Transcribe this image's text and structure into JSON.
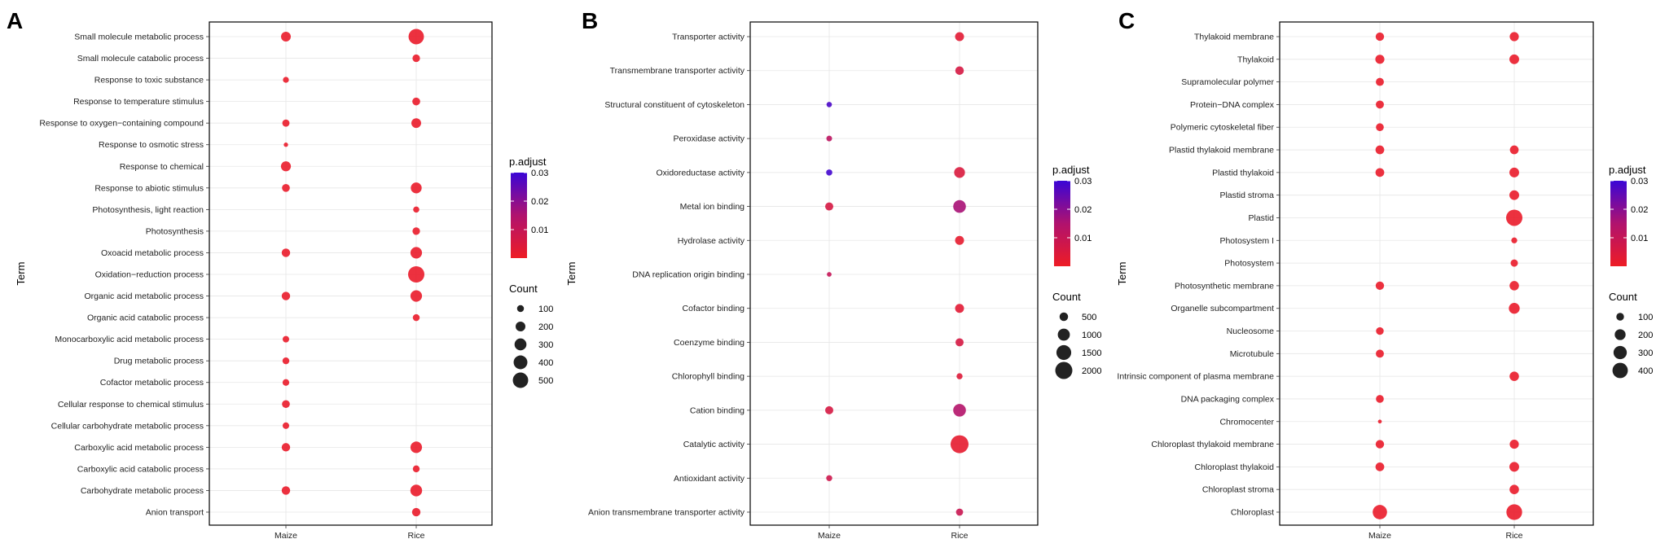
{
  "chart_data": [
    {
      "type": "scatter",
      "panel": "A",
      "xlabel": "",
      "ylabel": "Term",
      "categories": [
        "Maize",
        "Rice"
      ],
      "terms": [
        "Small molecule metabolic process",
        "Small molecule catabolic process",
        "Response to toxic substance",
        "Response to temperature stimulus",
        "Response to oxygen−containing compound",
        "Response to osmotic stress",
        "Response to chemical",
        "Response to abiotic stimulus",
        "Photosynthesis, light reaction",
        "Photosynthesis",
        "Oxoacid metabolic process",
        "Oxidation−reduction process",
        "Organic acid metabolic process",
        "Organic acid catabolic process",
        "Monocarboxylic acid metabolic process",
        "Drug metabolic process",
        "Cofactor metabolic process",
        "Cellular response to chemical stimulus",
        "Cellular carbohydrate metabolic process",
        "Carboxylic acid metabolic process",
        "Carboxylic acid catabolic process",
        "Carbohydrate metabolic process",
        "Anion transport"
      ],
      "points": [
        {
          "term": "Small molecule metabolic process",
          "group": "Maize",
          "count": 200,
          "p_adjust": 0.001
        },
        {
          "term": "Small molecule metabolic process",
          "group": "Rice",
          "count": 500,
          "p_adjust": 0.001
        },
        {
          "term": "Small molecule catabolic process",
          "group": "Rice",
          "count": 120,
          "p_adjust": 0.001
        },
        {
          "term": "Response to toxic substance",
          "group": "Maize",
          "count": 75,
          "p_adjust": 0.001
        },
        {
          "term": "Response to temperature stimulus",
          "group": "Rice",
          "count": 130,
          "p_adjust": 0.001
        },
        {
          "term": "Response to oxygen−containing compound",
          "group": "Maize",
          "count": 110,
          "p_adjust": 0.001
        },
        {
          "term": "Response to oxygen−containing compound",
          "group": "Rice",
          "count": 200,
          "p_adjust": 0.001
        },
        {
          "term": "Response to osmotic stress",
          "group": "Maize",
          "count": 40,
          "p_adjust": 0.001
        },
        {
          "term": "Response to chemical",
          "group": "Maize",
          "count": 210,
          "p_adjust": 0.001
        },
        {
          "term": "Response to abiotic stimulus",
          "group": "Maize",
          "count": 130,
          "p_adjust": 0.001
        },
        {
          "term": "Response to abiotic stimulus",
          "group": "Rice",
          "count": 250,
          "p_adjust": 0.001
        },
        {
          "term": "Photosynthesis, light reaction",
          "group": "Rice",
          "count": 80,
          "p_adjust": 0.001
        },
        {
          "term": "Photosynthesis",
          "group": "Rice",
          "count": 120,
          "p_adjust": 0.001
        },
        {
          "term": "Oxoacid metabolic process",
          "group": "Maize",
          "count": 150,
          "p_adjust": 0.001
        },
        {
          "term": "Oxoacid metabolic process",
          "group": "Rice",
          "count": 280,
          "p_adjust": 0.001
        },
        {
          "term": "Oxidation−reduction process",
          "group": "Rice",
          "count": 560,
          "p_adjust": 0.001
        },
        {
          "term": "Organic acid metabolic process",
          "group": "Maize",
          "count": 150,
          "p_adjust": 0.001
        },
        {
          "term": "Organic acid metabolic process",
          "group": "Rice",
          "count": 280,
          "p_adjust": 0.001
        },
        {
          "term": "Organic acid catabolic process",
          "group": "Rice",
          "count": 100,
          "p_adjust": 0.001
        },
        {
          "term": "Monocarboxylic acid metabolic process",
          "group": "Maize",
          "count": 90,
          "p_adjust": 0.001
        },
        {
          "term": "Drug metabolic process",
          "group": "Maize",
          "count": 100,
          "p_adjust": 0.001
        },
        {
          "term": "Cofactor metabolic process",
          "group": "Maize",
          "count": 95,
          "p_adjust": 0.001
        },
        {
          "term": "Cellular response to chemical stimulus",
          "group": "Maize",
          "count": 130,
          "p_adjust": 0.001
        },
        {
          "term": "Cellular carbohydrate metabolic process",
          "group": "Maize",
          "count": 90,
          "p_adjust": 0.001
        },
        {
          "term": "Carboxylic acid metabolic process",
          "group": "Maize",
          "count": 150,
          "p_adjust": 0.001
        },
        {
          "term": "Carboxylic acid metabolic process",
          "group": "Rice",
          "count": 280,
          "p_adjust": 0.001
        },
        {
          "term": "Carboxylic acid catabolic process",
          "group": "Rice",
          "count": 100,
          "p_adjust": 0.001
        },
        {
          "term": "Carbohydrate metabolic process",
          "group": "Maize",
          "count": 150,
          "p_adjust": 0.001
        },
        {
          "term": "Carbohydrate metabolic process",
          "group": "Rice",
          "count": 290,
          "p_adjust": 0.001
        },
        {
          "term": "Anion transport",
          "group": "Rice",
          "count": 150,
          "p_adjust": 0.001
        }
      ],
      "color_legend": {
        "title": "p.adjust",
        "min": 0.0,
        "max": 0.03,
        "ticks": [
          "0.01",
          "0.02",
          "0.03"
        ],
        "low_color": "#ee1c25",
        "high_color": "#3a05d6"
      },
      "size_legend": {
        "title": "Count",
        "values": [
          100,
          200,
          300,
          400,
          500
        ],
        "labels": [
          "100",
          "200",
          "300",
          "400",
          "500"
        ]
      }
    },
    {
      "type": "scatter",
      "panel": "B",
      "xlabel": "",
      "ylabel": "Term",
      "categories": [
        "Maize",
        "Rice"
      ],
      "terms": [
        "Transporter activity",
        "Transmembrane transporter activity",
        "Structural constituent of cytoskeleton",
        "Peroxidase activity",
        "Oxidoreductase activity",
        "Metal ion binding",
        "Hydrolase activity",
        "DNA replication origin binding",
        "Cofactor binding",
        "Coenzyme binding",
        "Chlorophyll binding",
        "Cation binding",
        "Catalytic activity",
        "Antioxidant activity",
        "Anion transmembrane transporter activity"
      ],
      "points": [
        {
          "term": "Transporter activity",
          "group": "Rice",
          "count": 550,
          "p_adjust": 0.003
        },
        {
          "term": "Transmembrane transporter activity",
          "group": "Rice",
          "count": 500,
          "p_adjust": 0.006
        },
        {
          "term": "Structural constituent of cytoskeleton",
          "group": "Maize",
          "count": 200,
          "p_adjust": 0.028
        },
        {
          "term": "Peroxidase activity",
          "group": "Maize",
          "count": 220,
          "p_adjust": 0.012
        },
        {
          "term": "Oxidoreductase activity",
          "group": "Maize",
          "count": 260,
          "p_adjust": 0.029
        },
        {
          "term": "Oxidoreductase activity",
          "group": "Rice",
          "count": 800,
          "p_adjust": 0.005
        },
        {
          "term": "Metal ion binding",
          "group": "Maize",
          "count": 450,
          "p_adjust": 0.006
        },
        {
          "term": "Metal ion binding",
          "group": "Rice",
          "count": 1100,
          "p_adjust": 0.016
        },
        {
          "term": "Hydrolase activity",
          "group": "Rice",
          "count": 550,
          "p_adjust": 0.002
        },
        {
          "term": "DNA replication origin binding",
          "group": "Maize",
          "count": 150,
          "p_adjust": 0.01
        },
        {
          "term": "Cofactor binding",
          "group": "Rice",
          "count": 550,
          "p_adjust": 0.003
        },
        {
          "term": "Coenzyme binding",
          "group": "Rice",
          "count": 450,
          "p_adjust": 0.006
        },
        {
          "term": "Chlorophyll binding",
          "group": "Rice",
          "count": 250,
          "p_adjust": 0.004
        },
        {
          "term": "Cation binding",
          "group": "Maize",
          "count": 450,
          "p_adjust": 0.006
        },
        {
          "term": "Cation binding",
          "group": "Rice",
          "count": 1100,
          "p_adjust": 0.014
        },
        {
          "term": "Catalytic activity",
          "group": "Rice",
          "count": 2200,
          "p_adjust": 0.002
        },
        {
          "term": "Antioxidant activity",
          "group": "Maize",
          "count": 250,
          "p_adjust": 0.008
        },
        {
          "term": "Anion transmembrane transporter activity",
          "group": "Rice",
          "count": 350,
          "p_adjust": 0.009
        }
      ],
      "color_legend": {
        "title": "p.adjust",
        "min": 0.0,
        "max": 0.03,
        "ticks": [
          "0.01",
          "0.02",
          "0.03"
        ],
        "low_color": "#ee1c25",
        "high_color": "#3a05d6"
      },
      "size_legend": {
        "title": "Count",
        "values": [
          500,
          1000,
          1500,
          2000
        ],
        "labels": [
          "500",
          "1000",
          "1500",
          "2000"
        ]
      }
    },
    {
      "type": "scatter",
      "panel": "C",
      "xlabel": "",
      "ylabel": "Term",
      "categories": [
        "Maize",
        "Rice"
      ],
      "terms": [
        "Thylakoid membrane",
        "Thylakoid",
        "Supramolecular polymer",
        "Protein−DNA complex",
        "Polymeric cytoskeletal fiber",
        "Plastid thylakoid membrane",
        "Plastid thylakoid",
        "Plastid stroma",
        "Plastid",
        "Photosystem I",
        "Photosystem",
        "Photosynthetic membrane",
        "Organelle subcompartment",
        "Nucleosome",
        "Microtubule",
        "Intrinsic component of plasma membrane",
        "DNA packaging complex",
        "Chromocenter",
        "Chloroplast thylakoid membrane",
        "Chloroplast thylakoid",
        "Chloroplast stroma",
        "Chloroplast"
      ],
      "points": [
        {
          "term": "Thylakoid membrane",
          "group": "Maize",
          "count": 120,
          "p_adjust": 0.001
        },
        {
          "term": "Thylakoid membrane",
          "group": "Rice",
          "count": 140,
          "p_adjust": 0.001
        },
        {
          "term": "Thylakoid",
          "group": "Maize",
          "count": 140,
          "p_adjust": 0.001
        },
        {
          "term": "Thylakoid",
          "group": "Rice",
          "count": 160,
          "p_adjust": 0.001
        },
        {
          "term": "Supramolecular polymer",
          "group": "Maize",
          "count": 110,
          "p_adjust": 0.001
        },
        {
          "term": "Protein−DNA complex",
          "group": "Maize",
          "count": 110,
          "p_adjust": 0.001
        },
        {
          "term": "Polymeric cytoskeletal fiber",
          "group": "Maize",
          "count": 105,
          "p_adjust": 0.001
        },
        {
          "term": "Plastid thylakoid membrane",
          "group": "Maize",
          "count": 130,
          "p_adjust": 0.001
        },
        {
          "term": "Plastid thylakoid membrane",
          "group": "Rice",
          "count": 130,
          "p_adjust": 0.001
        },
        {
          "term": "Plastid thylakoid",
          "group": "Maize",
          "count": 130,
          "p_adjust": 0.001
        },
        {
          "term": "Plastid thylakoid",
          "group": "Rice",
          "count": 160,
          "p_adjust": 0.001
        },
        {
          "term": "Plastid stroma",
          "group": "Rice",
          "count": 160,
          "p_adjust": 0.001
        },
        {
          "term": "Plastid",
          "group": "Rice",
          "count": 450,
          "p_adjust": 0.001
        },
        {
          "term": "Photosystem I",
          "group": "Rice",
          "count": 60,
          "p_adjust": 0.001
        },
        {
          "term": "Photosystem",
          "group": "Rice",
          "count": 90,
          "p_adjust": 0.001
        },
        {
          "term": "Photosynthetic membrane",
          "group": "Maize",
          "count": 120,
          "p_adjust": 0.001
        },
        {
          "term": "Photosynthetic membrane",
          "group": "Rice",
          "count": 150,
          "p_adjust": 0.001
        },
        {
          "term": "Organelle subcompartment",
          "group": "Rice",
          "count": 200,
          "p_adjust": 0.001
        },
        {
          "term": "Nucleosome",
          "group": "Maize",
          "count": 100,
          "p_adjust": 0.001
        },
        {
          "term": "Microtubule",
          "group": "Maize",
          "count": 110,
          "p_adjust": 0.001
        },
        {
          "term": "Intrinsic component of plasma membrane",
          "group": "Rice",
          "count": 150,
          "p_adjust": 0.001
        },
        {
          "term": "DNA packaging complex",
          "group": "Maize",
          "count": 105,
          "p_adjust": 0.001
        },
        {
          "term": "Chromocenter",
          "group": "Maize",
          "count": 25,
          "p_adjust": 0.001
        },
        {
          "term": "Chloroplast thylakoid membrane",
          "group": "Maize",
          "count": 120,
          "p_adjust": 0.001
        },
        {
          "term": "Chloroplast thylakoid membrane",
          "group": "Rice",
          "count": 140,
          "p_adjust": 0.001
        },
        {
          "term": "Chloroplast thylakoid",
          "group": "Maize",
          "count": 130,
          "p_adjust": 0.001
        },
        {
          "term": "Chloroplast thylakoid",
          "group": "Rice",
          "count": 160,
          "p_adjust": 0.001
        },
        {
          "term": "Chloroplast stroma",
          "group": "Rice",
          "count": 150,
          "p_adjust": 0.001
        },
        {
          "term": "Chloroplast",
          "group": "Maize",
          "count": 350,
          "p_adjust": 0.001
        },
        {
          "term": "Chloroplast",
          "group": "Rice",
          "count": 420,
          "p_adjust": 0.001
        }
      ],
      "color_legend": {
        "title": "p.adjust",
        "min": 0.0,
        "max": 0.03,
        "ticks": [
          "0.01",
          "0.02",
          "0.03"
        ],
        "low_color": "#ee1c25",
        "high_color": "#3a05d6"
      },
      "size_legend": {
        "title": "Count",
        "values": [
          100,
          200,
          300,
          400
        ],
        "labels": [
          "100",
          "200",
          "300",
          "400"
        ]
      }
    }
  ]
}
